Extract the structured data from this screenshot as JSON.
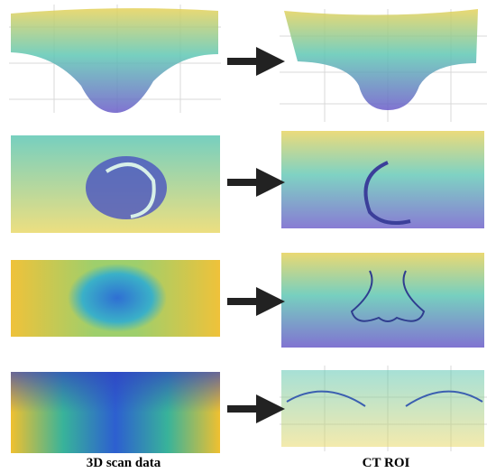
{
  "captions": {
    "left": "3D scan data",
    "right": "CT ROI"
  }
}
